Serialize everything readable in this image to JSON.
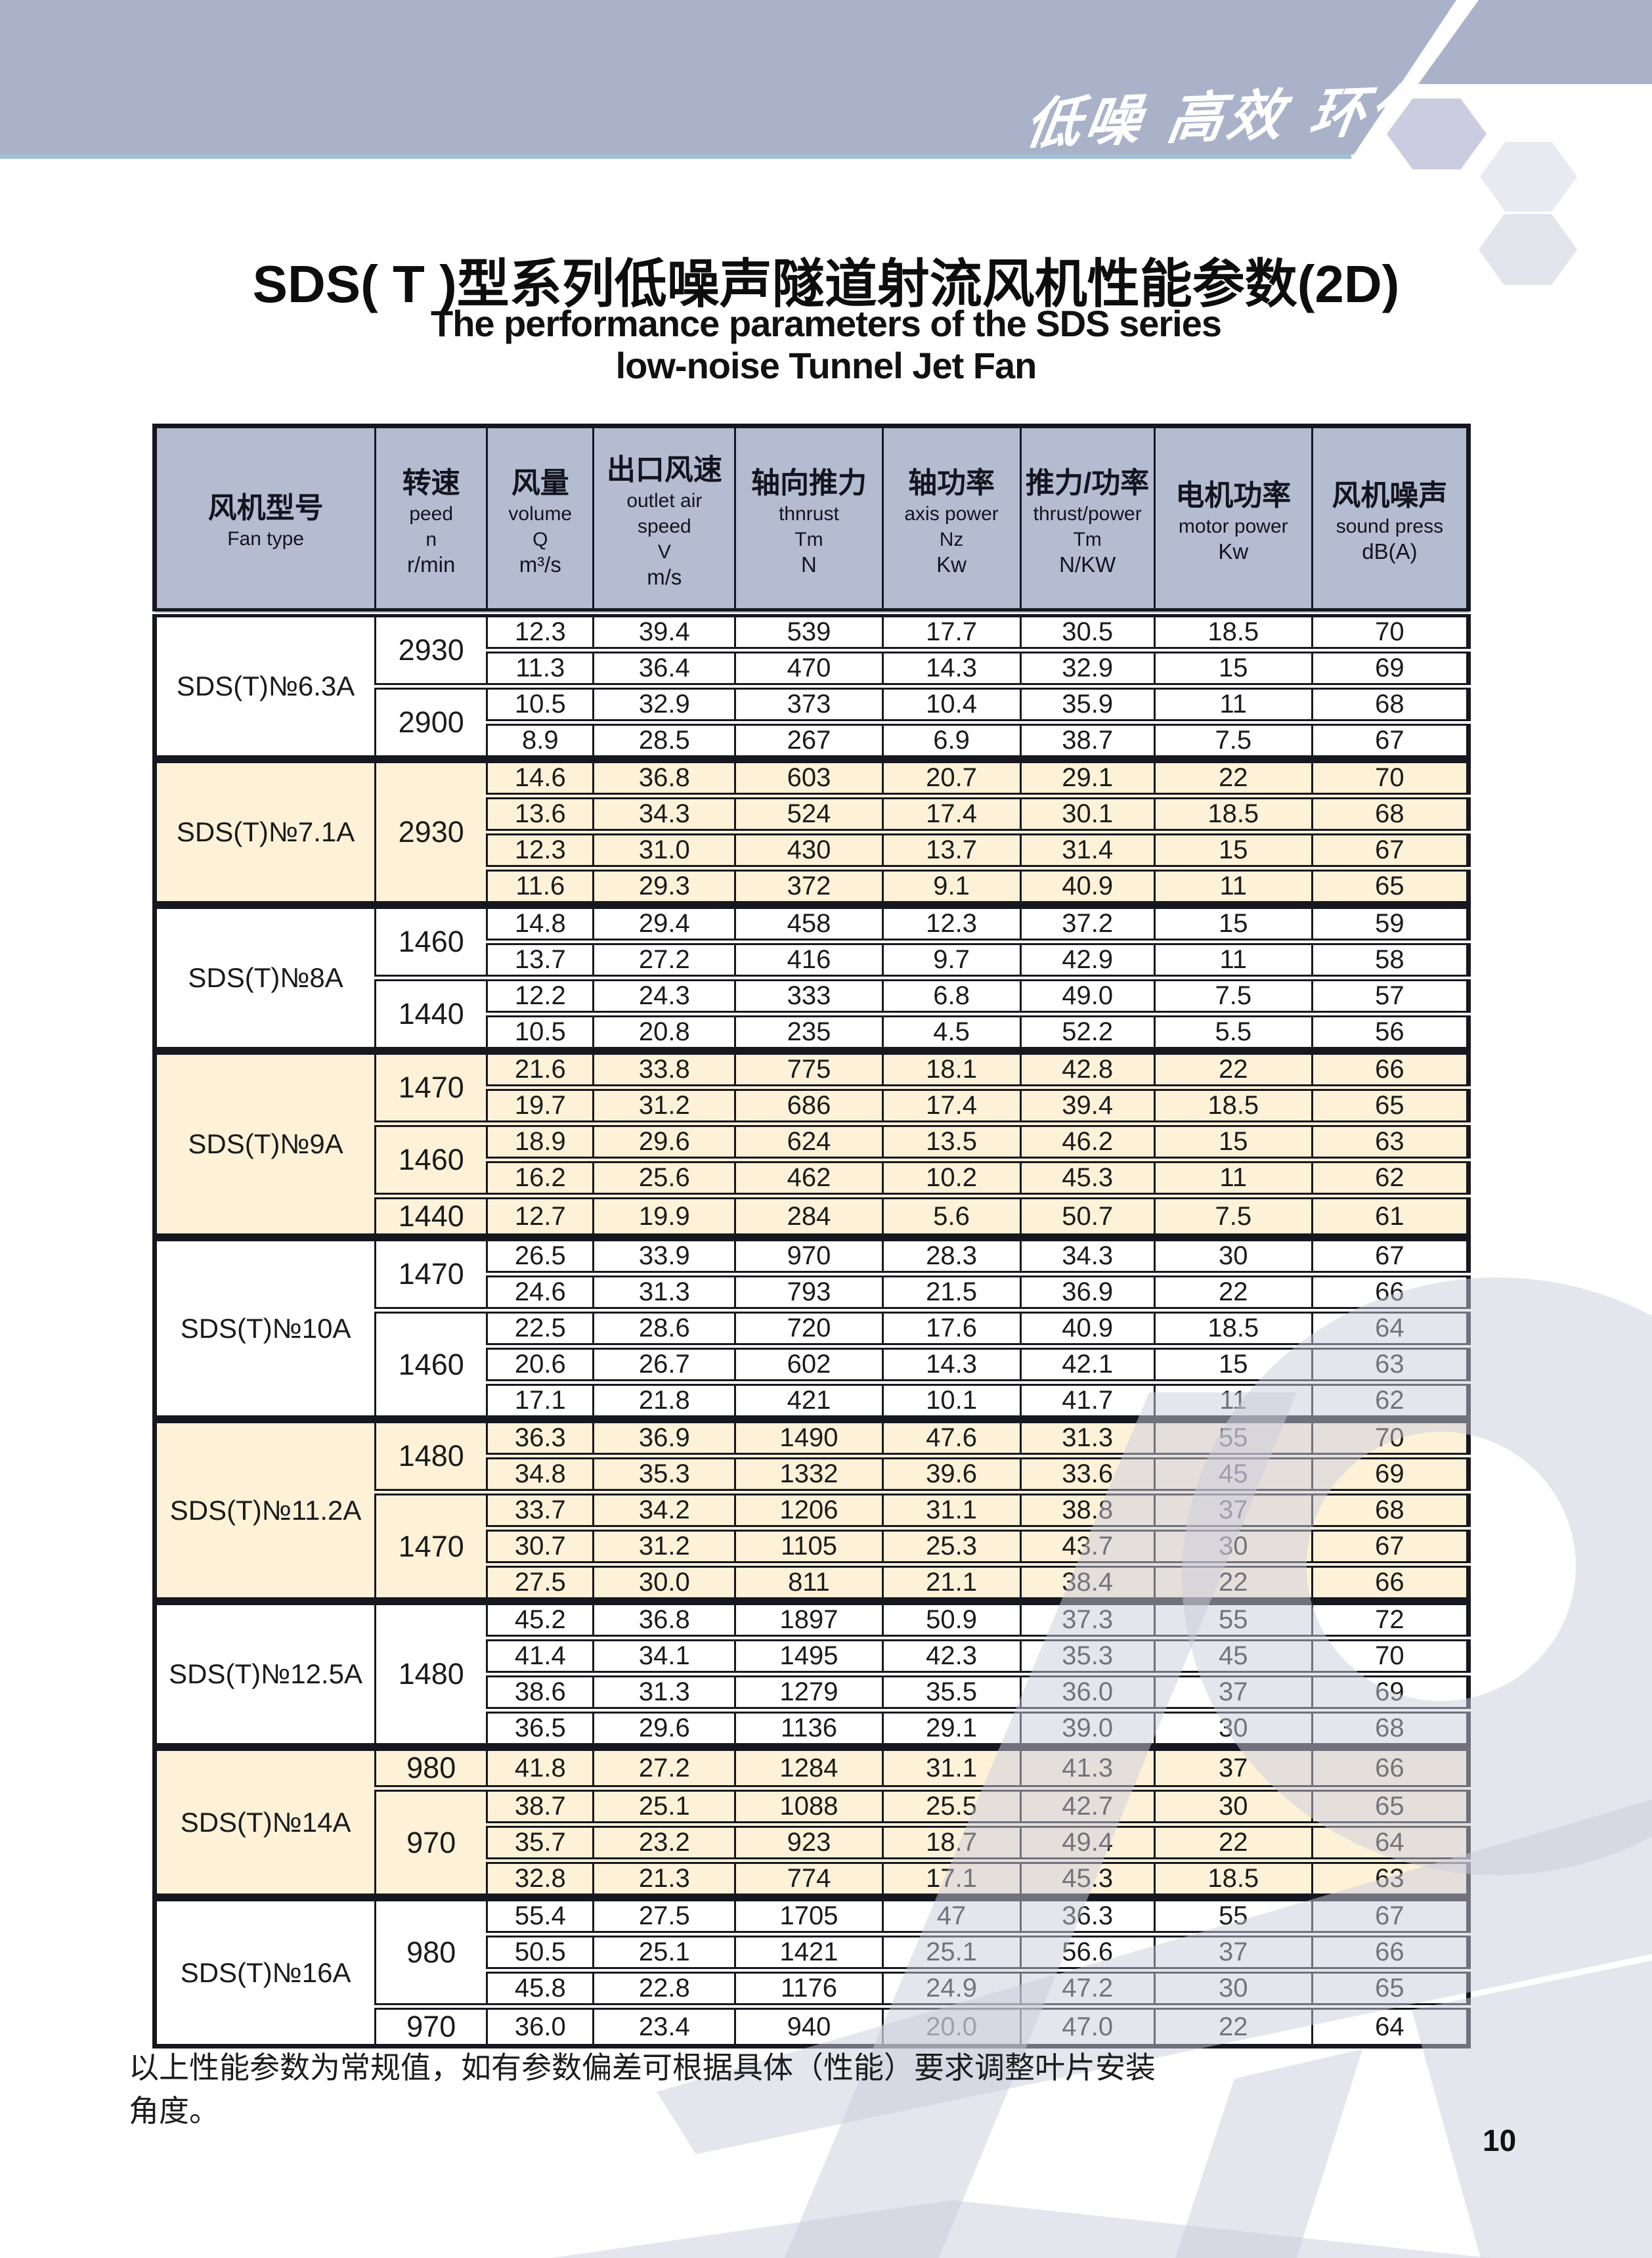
{
  "banner": {
    "slogan": "低噪 高效 环保"
  },
  "title": {
    "p1": "SDS",
    "p2": "( T )",
    "p3": "型系列低噪声隧道射流风机性能参数",
    "p4": "(2D)",
    "en1": "The performance parameters of the SDS series",
    "en2": "low-noise Tunnel Jet Fan"
  },
  "colors": {
    "banner": "#a9b2c9",
    "banner_underline": "#a2c0d4",
    "table_header_bg": "#b4bcd2",
    "row_cream": "#fdf2d8",
    "row_white": "#ffffff",
    "table_border": "#17171f",
    "watermark": "#cbccdc",
    "hexagons": [
      "#cccce0",
      "#e9e9f2",
      "#e3e3ec"
    ]
  },
  "table": {
    "headers": [
      {
        "zh": "风机型号",
        "lines": [
          "Fan type"
        ],
        "unit": ""
      },
      {
        "zh": "转速",
        "lines": [
          "peed",
          "n"
        ],
        "unit": "r/min"
      },
      {
        "zh": "风量",
        "lines": [
          "volume",
          "Q"
        ],
        "unit": "m³/s"
      },
      {
        "zh": "出口风速",
        "lines": [
          "outlet air",
          "speed",
          "V"
        ],
        "unit": "m/s"
      },
      {
        "zh": "轴向推力",
        "lines": [
          "thnrust",
          "Tm"
        ],
        "unit": "N"
      },
      {
        "zh": "轴功率",
        "lines": [
          "axis power",
          "Nz"
        ],
        "unit": "Kw"
      },
      {
        "zh": "推力/功率",
        "lines": [
          "thrust/power",
          "Tm"
        ],
        "unit": "N/KW"
      },
      {
        "zh": "电机功率",
        "lines": [
          "motor power"
        ],
        "unit": "Kw"
      },
      {
        "zh": "风机噪声",
        "lines": [
          "sound press"
        ],
        "unit": "dB(A)"
      }
    ],
    "col_widths_pct": [
      16.8,
      8.5,
      8.1,
      10.8,
      11.2,
      10.5,
      10.2,
      12.0,
      11.9
    ],
    "groups": [
      {
        "name": "SDS(T)№6.3A",
        "tone": "white",
        "blocks": [
          {
            "speed": "2930",
            "rows": [
              [
                "12.3",
                "39.4",
                "539",
                "17.7",
                "30.5",
                "18.5",
                "70"
              ],
              [
                "11.3",
                "36.4",
                "470",
                "14.3",
                "32.9",
                "15",
                "69"
              ]
            ]
          },
          {
            "speed": "2900",
            "rows": [
              [
                "10.5",
                "32.9",
                "373",
                "10.4",
                "35.9",
                "11",
                "68"
              ],
              [
                "8.9",
                "28.5",
                "267",
                "6.9",
                "38.7",
                "7.5",
                "67"
              ]
            ]
          }
        ]
      },
      {
        "name": "SDS(T)№7.1A",
        "tone": "cream",
        "blocks": [
          {
            "speed": "2930",
            "rows": [
              [
                "14.6",
                "36.8",
                "603",
                "20.7",
                "29.1",
                "22",
                "70"
              ],
              [
                "13.6",
                "34.3",
                "524",
                "17.4",
                "30.1",
                "18.5",
                "68"
              ],
              [
                "12.3",
                "31.0",
                "430",
                "13.7",
                "31.4",
                "15",
                "67"
              ],
              [
                "11.6",
                "29.3",
                "372",
                "9.1",
                "40.9",
                "11",
                "65"
              ]
            ]
          }
        ]
      },
      {
        "name": "SDS(T)№8A",
        "tone": "white",
        "blocks": [
          {
            "speed": "1460",
            "rows": [
              [
                "14.8",
                "29.4",
                "458",
                "12.3",
                "37.2",
                "15",
                "59"
              ],
              [
                "13.7",
                "27.2",
                "416",
                "9.7",
                "42.9",
                "11",
                "58"
              ]
            ]
          },
          {
            "speed": "1440",
            "rows": [
              [
                "12.2",
                "24.3",
                "333",
                "6.8",
                "49.0",
                "7.5",
                "57"
              ],
              [
                "10.5",
                "20.8",
                "235",
                "4.5",
                "52.2",
                "5.5",
                "56"
              ]
            ]
          }
        ]
      },
      {
        "name": "SDS(T)№9A",
        "tone": "cream",
        "blocks": [
          {
            "speed": "1470",
            "rows": [
              [
                "21.6",
                "33.8",
                "775",
                "18.1",
                "42.8",
                "22",
                "66"
              ],
              [
                "19.7",
                "31.2",
                "686",
                "17.4",
                "39.4",
                "18.5",
                "65"
              ]
            ]
          },
          {
            "speed": "1460",
            "rows": [
              [
                "18.9",
                "29.6",
                "624",
                "13.5",
                "46.2",
                "15",
                "63"
              ],
              [
                "16.2",
                "25.6",
                "462",
                "10.2",
                "45.3",
                "11",
                "62"
              ]
            ]
          },
          {
            "speed": "1440",
            "rows": [
              [
                "12.7",
                "19.9",
                "284",
                "5.6",
                "50.7",
                "7.5",
                "61"
              ]
            ]
          }
        ]
      },
      {
        "name": "SDS(T)№10A",
        "tone": "white",
        "blocks": [
          {
            "speed": "1470",
            "rows": [
              [
                "26.5",
                "33.9",
                "970",
                "28.3",
                "34.3",
                "30",
                "67"
              ],
              [
                "24.6",
                "31.3",
                "793",
                "21.5",
                "36.9",
                "22",
                "66"
              ]
            ]
          },
          {
            "speed": "1460",
            "rows": [
              [
                "22.5",
                "28.6",
                "720",
                "17.6",
                "40.9",
                "18.5",
                "64"
              ],
              [
                "20.6",
                "26.7",
                "602",
                "14.3",
                "42.1",
                "15",
                "63"
              ],
              [
                "17.1",
                "21.8",
                "421",
                "10.1",
                "41.7",
                "11",
                "62"
              ]
            ]
          }
        ]
      },
      {
        "name": "SDS(T)№11.2A",
        "tone": "cream",
        "blocks": [
          {
            "speed": "1480",
            "rows": [
              [
                "36.3",
                "36.9",
                "1490",
                "47.6",
                "31.3",
                "55",
                "70"
              ],
              [
                "34.8",
                "35.3",
                "1332",
                "39.6",
                "33.6",
                "45",
                "69"
              ]
            ]
          },
          {
            "speed": "1470",
            "rows": [
              [
                "33.7",
                "34.2",
                "1206",
                "31.1",
                "38.8",
                "37",
                "68"
              ],
              [
                "30.7",
                "31.2",
                "1105",
                "25.3",
                "43.7",
                "30",
                "67"
              ],
              [
                "27.5",
                "30.0",
                "811",
                "21.1",
                "38.4",
                "22",
                "66"
              ]
            ]
          }
        ]
      },
      {
        "name": "SDS(T)№12.5A",
        "tone": "white",
        "blocks": [
          {
            "speed": "1480",
            "rows": [
              [
                "45.2",
                "36.8",
                "1897",
                "50.9",
                "37.3",
                "55",
                "72"
              ],
              [
                "41.4",
                "34.1",
                "1495",
                "42.3",
                "35.3",
                "45",
                "70"
              ],
              [
                "38.6",
                "31.3",
                "1279",
                "35.5",
                "36.0",
                "37",
                "69"
              ],
              [
                "36.5",
                "29.6",
                "1136",
                "29.1",
                "39.0",
                "30",
                "68"
              ]
            ]
          }
        ]
      },
      {
        "name": "SDS(T)№14A",
        "tone": "cream",
        "blocks": [
          {
            "speed": "980",
            "rows": [
              [
                "41.8",
                "27.2",
                "1284",
                "31.1",
                "41.3",
                "37",
                "66"
              ]
            ]
          },
          {
            "speed": "970",
            "rows": [
              [
                "38.7",
                "25.1",
                "1088",
                "25.5",
                "42.7",
                "30",
                "65"
              ],
              [
                "35.7",
                "23.2",
                "923",
                "18.7",
                "49.4",
                "22",
                "64"
              ],
              [
                "32.8",
                "21.3",
                "774",
                "17.1",
                "45.3",
                "18.5",
                "63"
              ]
            ]
          }
        ]
      },
      {
        "name": "SDS(T)№16A",
        "tone": "white",
        "blocks": [
          {
            "speed": "980",
            "rows": [
              [
                "55.4",
                "27.5",
                "1705",
                "47",
                "36.3",
                "55",
                "67"
              ],
              [
                "50.5",
                "25.1",
                "1421",
                "25.1",
                "56.6",
                "37",
                "66"
              ],
              [
                "45.8",
                "22.8",
                "1176",
                "24.9",
                "47.2",
                "30",
                "65"
              ]
            ]
          },
          {
            "speed": "970",
            "rows": [
              [
                "36.0",
                "23.4",
                "940",
                "20.0",
                "47.0",
                "22",
                "64"
              ]
            ]
          }
        ]
      }
    ]
  },
  "footnote": "以上性能参数为常规值，如有参数偏差可根据具体（性能）要求调整叶片安装角度。",
  "page_number": "10"
}
